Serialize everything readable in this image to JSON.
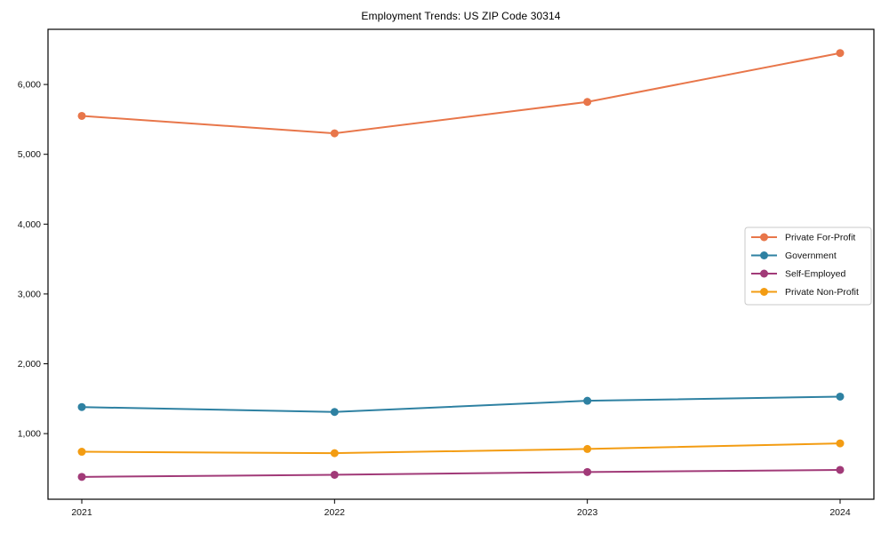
{
  "figure": {
    "title": "Employment Trends: US ZIP Code 30314"
  },
  "chart_data": {
    "type": "line",
    "title": "Employment Trends: US ZIP Code 30314",
    "xlabel": "",
    "ylabel": "",
    "categories": [
      "2021",
      "2022",
      "2023",
      "2024"
    ],
    "series": [
      {
        "name": "Private For-Profit",
        "color": "#e8764a",
        "values": [
          5550,
          5300,
          5750,
          6450
        ]
      },
      {
        "name": "Government",
        "color": "#2e81a2",
        "values": [
          1380,
          1310,
          1470,
          1530
        ]
      },
      {
        "name": "Self-Employed",
        "color": "#a13a78",
        "values": [
          380,
          410,
          450,
          480
        ]
      },
      {
        "name": "Private Non-Profit",
        "color": "#f39c12",
        "values": [
          740,
          720,
          780,
          860
        ]
      }
    ],
    "ylim": [
      60,
      6790
    ],
    "yticks": [
      1000,
      2000,
      3000,
      4000,
      5000,
      6000
    ],
    "grid": false,
    "legend_position": "right-center",
    "marker": "circle",
    "spine_color": "#000000",
    "legend_border_color": "#c9c9c9"
  }
}
